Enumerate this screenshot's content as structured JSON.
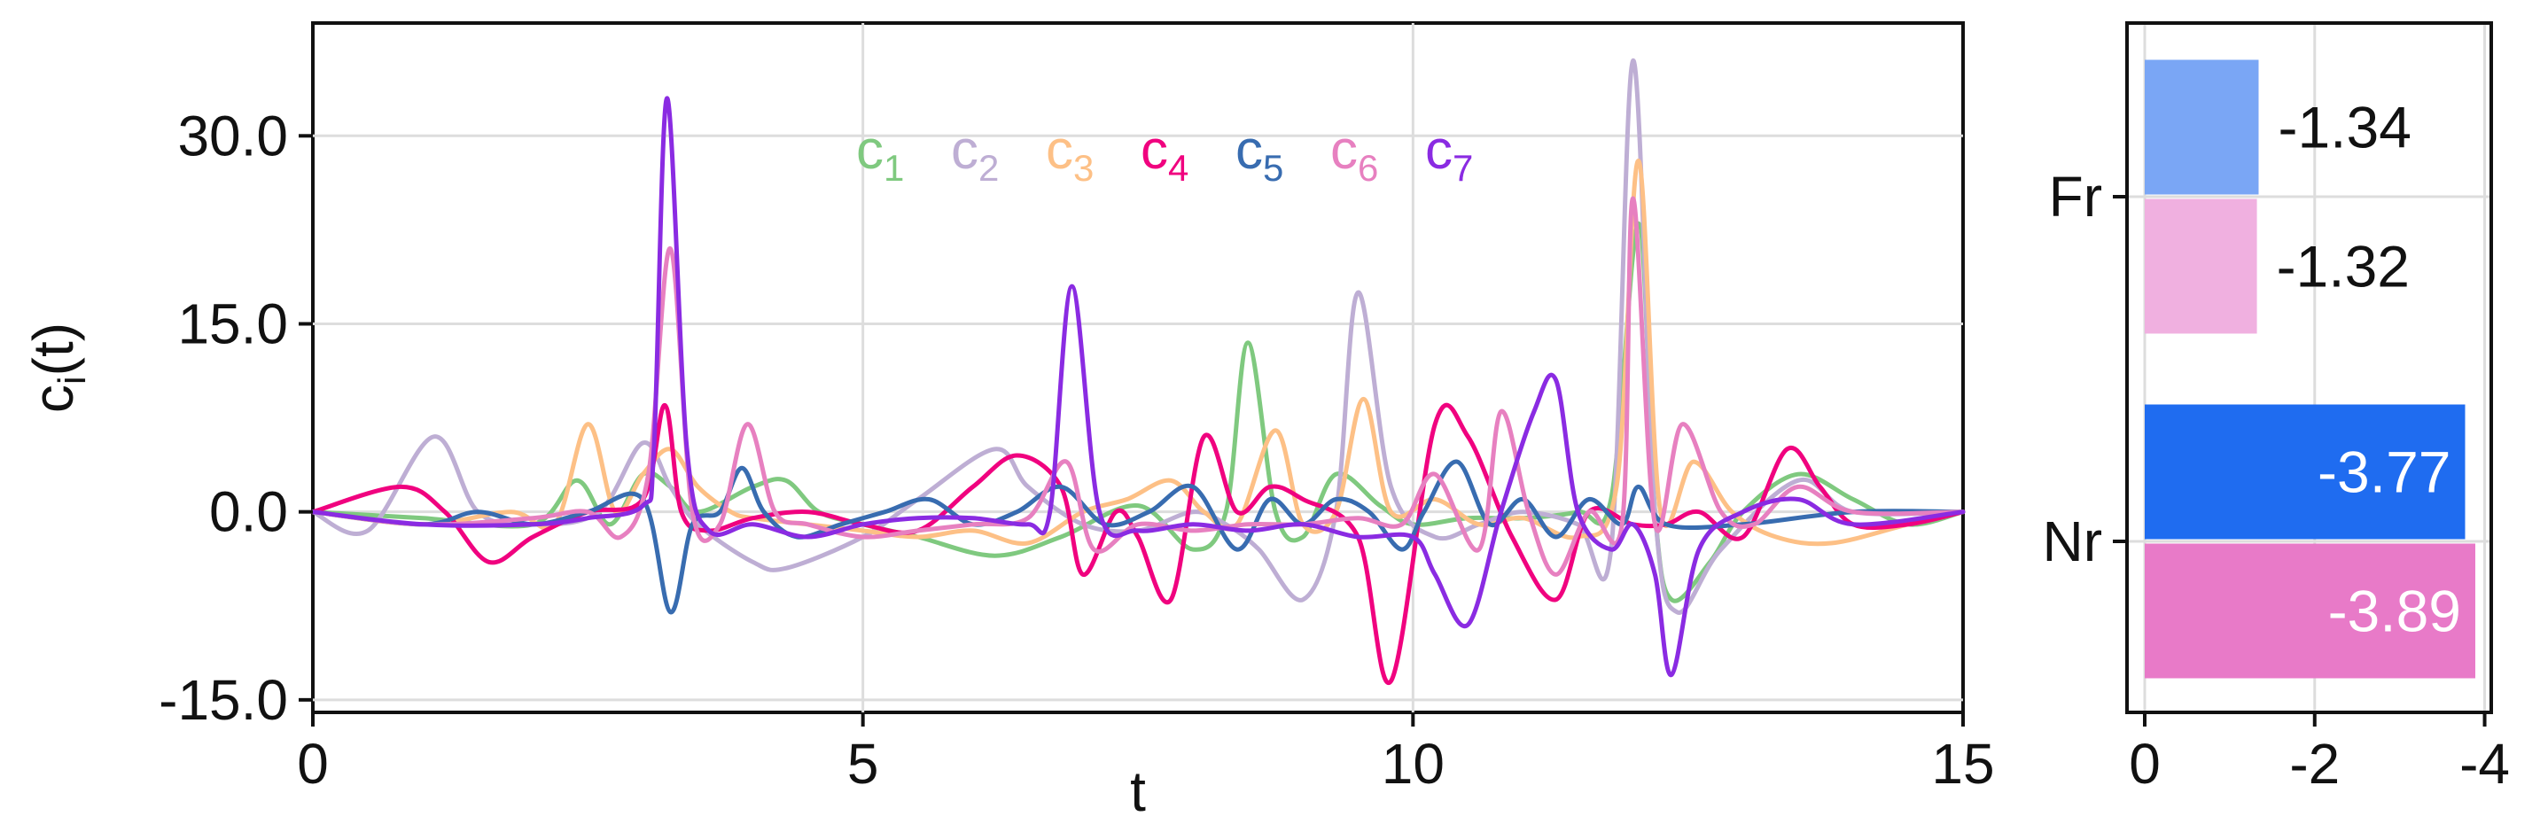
{
  "chart_data": [
    {
      "type": "line",
      "xlabel": "t",
      "ylabel_main": "c",
      "ylabel_sub": "i",
      "ylabel_suffix": "(t)",
      "xlim": [
        0,
        15
      ],
      "ylim": [
        -16,
        39
      ],
      "xticks": [
        0,
        5,
        10,
        15
      ],
      "xtick_labels": [
        "0",
        "5",
        "10",
        "15"
      ],
      "yticks": [
        -15,
        0,
        15,
        30
      ],
      "ytick_labels": [
        "-15.0",
        "0.0",
        "15.0",
        "30.0"
      ],
      "grid": true,
      "legend": {
        "placement": "top-center",
        "orientation": "horizontal"
      },
      "series": [
        {
          "name": "c",
          "sub": "1",
          "color": "#7fc97f",
          "x": [
            0,
            1.0,
            2.0,
            2.4,
            2.7,
            3.0,
            3.25,
            3.5,
            4.0,
            4.3,
            4.6,
            5.0,
            5.5,
            6.2,
            6.8,
            7.5,
            8.0,
            8.3,
            8.5,
            8.75,
            9.0,
            9.3,
            9.7,
            10.0,
            10.5,
            11.0,
            11.5,
            11.8,
            12.05,
            12.2,
            12.35,
            12.7,
            13.0,
            13.5,
            14.0,
            14.5,
            15.0
          ],
          "y": [
            0,
            -0.5,
            -1.0,
            2.5,
            -1.0,
            3.0,
            2.0,
            0.0,
            2.0,
            2.5,
            0.0,
            -1.0,
            -2.0,
            -3.5,
            -2.0,
            0.5,
            -3.0,
            0.0,
            13.5,
            0.0,
            -2.0,
            3.0,
            0.5,
            -1.0,
            -0.5,
            -0.5,
            0.0,
            1.0,
            23.0,
            0.0,
            -7.0,
            -4.0,
            0.0,
            3.0,
            1.0,
            -1.0,
            0
          ]
        },
        {
          "name": "c",
          "sub": "2",
          "color": "#beaed4",
          "x": [
            0,
            0.5,
            1.1,
            1.5,
            2.0,
            2.6,
            3.0,
            3.25,
            3.5,
            4.0,
            4.3,
            5.0,
            5.5,
            6.2,
            6.5,
            7.0,
            7.5,
            8.0,
            8.3,
            8.6,
            9.0,
            9.3,
            9.5,
            9.8,
            10.2,
            10.6,
            11.0,
            11.5,
            11.8,
            12.0,
            12.2,
            12.4,
            12.8,
            13.5,
            14.0,
            15.0
          ],
          "y": [
            0,
            -1.5,
            6.0,
            0.0,
            -1.0,
            0.0,
            5.5,
            2.0,
            -1.0,
            -4.0,
            -4.5,
            -2.0,
            1.0,
            5.0,
            2.0,
            -1.0,
            -1.5,
            0.0,
            -1.0,
            -3.0,
            -7.0,
            0.0,
            17.5,
            2.0,
            -2.0,
            -1.0,
            0.0,
            -1.0,
            -3.0,
            36.0,
            0.0,
            -8.0,
            -3.0,
            2.5,
            0.0,
            0
          ]
        },
        {
          "name": "c",
          "sub": "3",
          "color": "#fdc086",
          "x": [
            0,
            1.0,
            1.8,
            2.2,
            2.5,
            2.75,
            3.0,
            3.25,
            3.5,
            3.8,
            4.0,
            4.5,
            5.0,
            5.5,
            6.0,
            6.5,
            7.0,
            7.4,
            7.8,
            8.1,
            8.4,
            8.75,
            9.0,
            9.3,
            9.55,
            9.8,
            10.2,
            10.6,
            11.0,
            11.5,
            11.85,
            12.05,
            12.25,
            12.55,
            12.9,
            13.3,
            13.8,
            14.5,
            15.0
          ],
          "y": [
            0,
            -1.0,
            0.0,
            -1.0,
            7.0,
            0.0,
            3.0,
            5.0,
            2.0,
            0.0,
            -0.5,
            -1.0,
            -1.5,
            -2.0,
            -1.5,
            -2.5,
            0.0,
            1.0,
            2.5,
            0.0,
            -1.0,
            6.5,
            -1.0,
            0.0,
            9.0,
            0.0,
            1.0,
            -1.0,
            -0.5,
            -2.0,
            2.0,
            28.0,
            0.0,
            4.0,
            0.0,
            -2.0,
            -2.5,
            -1.0,
            0
          ]
        },
        {
          "name": "c",
          "sub": "4",
          "color": "#f0027f",
          "x": [
            0,
            0.8,
            1.2,
            1.6,
            2.0,
            2.5,
            3.0,
            3.2,
            3.35,
            3.6,
            4.0,
            4.5,
            5.0,
            5.5,
            6.0,
            6.4,
            6.8,
            7.0,
            7.3,
            7.5,
            7.8,
            8.1,
            8.4,
            8.7,
            9.0,
            9.5,
            9.8,
            10.2,
            10.5,
            10.9,
            11.3,
            11.6,
            12.0,
            12.3,
            12.6,
            13.0,
            13.4,
            13.7,
            14.0,
            14.5,
            15.0
          ],
          "y": [
            0,
            2.0,
            0.0,
            -4.0,
            -2.0,
            0.0,
            1.0,
            8.5,
            0.0,
            -1.5,
            -0.5,
            0.0,
            -1.0,
            -1.5,
            2.0,
            4.5,
            2.0,
            -5.0,
            0.0,
            -2.0,
            -7.0,
            6.0,
            0.0,
            2.0,
            1.0,
            -2.0,
            -13.5,
            7.0,
            6.0,
            -2.0,
            -7.0,
            0.0,
            -1.0,
            -1.0,
            0.0,
            -2.0,
            5.0,
            2.0,
            -1.0,
            -1.0,
            0
          ]
        },
        {
          "name": "c",
          "sub": "5",
          "color": "#386cb0",
          "x": [
            0,
            1.0,
            1.5,
            2.0,
            2.5,
            3.0,
            3.25,
            3.45,
            3.7,
            3.9,
            4.1,
            4.4,
            4.8,
            5.2,
            5.6,
            6.0,
            6.4,
            6.8,
            7.2,
            7.6,
            8.0,
            8.4,
            8.7,
            9.0,
            9.3,
            9.6,
            9.9,
            10.1,
            10.4,
            10.7,
            11.0,
            11.3,
            11.6,
            11.9,
            12.05,
            12.3,
            13.0,
            14.0,
            15.0
          ],
          "y": [
            0,
            -1.0,
            0.0,
            -1.0,
            0.0,
            1.0,
            -8.0,
            -1.0,
            0.0,
            3.5,
            0.0,
            -2.0,
            -1.0,
            0.0,
            1.0,
            -1.0,
            0.0,
            2.0,
            -1.0,
            0.0,
            2.0,
            -3.0,
            1.0,
            -1.0,
            1.0,
            0.0,
            -3.0,
            0.0,
            4.0,
            -1.0,
            1.0,
            -2.0,
            1.0,
            -1.0,
            2.0,
            -1.0,
            -1.0,
            0.0,
            0
          ]
        },
        {
          "name": "c",
          "sub": "6",
          "color": "#e780c0",
          "x": [
            0,
            1.0,
            2.0,
            2.5,
            2.8,
            3.05,
            3.25,
            3.45,
            3.7,
            3.95,
            4.2,
            4.5,
            5.0,
            5.5,
            6.0,
            6.5,
            6.85,
            7.1,
            7.5,
            8.0,
            8.5,
            9.0,
            9.5,
            9.9,
            10.2,
            10.6,
            10.8,
            11.05,
            11.3,
            11.6,
            11.9,
            12.0,
            12.2,
            12.45,
            12.8,
            13.1,
            13.5,
            14.0,
            15.0
          ],
          "y": [
            0,
            -1.0,
            -0.5,
            0.0,
            -2.0,
            3.0,
            21.0,
            0.0,
            -1.0,
            7.0,
            0.0,
            -1.0,
            -2.0,
            -1.5,
            -1.0,
            -0.5,
            4.0,
            -3.0,
            -1.0,
            -1.5,
            -1.0,
            -1.0,
            -0.5,
            -1.0,
            3.0,
            -3.0,
            8.0,
            0.0,
            -5.0,
            0.0,
            -1.0,
            25.0,
            -1.0,
            7.0,
            0.0,
            -1.0,
            2.0,
            0.0,
            0
          ]
        },
        {
          "name": "c",
          "sub": "7",
          "color": "#8a2be2",
          "x": [
            0,
            1.0,
            2.0,
            2.5,
            3.0,
            3.1,
            3.22,
            3.4,
            3.6,
            4.0,
            4.5,
            5.0,
            5.5,
            6.0,
            6.5,
            6.7,
            6.9,
            7.15,
            7.5,
            8.0,
            8.5,
            9.0,
            9.5,
            10.0,
            10.2,
            10.5,
            10.8,
            11.1,
            11.3,
            11.5,
            11.8,
            12.0,
            12.2,
            12.35,
            12.6,
            13.0,
            13.5,
            14.0,
            15.0
          ],
          "y": [
            0,
            -1.0,
            -1.0,
            -0.5,
            0.5,
            5.0,
            33.0,
            5.0,
            -1.5,
            -1.0,
            -2.0,
            -1.0,
            -0.5,
            -0.5,
            -1.0,
            0.0,
            18.0,
            0.0,
            -1.5,
            -1.0,
            -1.5,
            -1.0,
            -2.0,
            -2.0,
            -5.0,
            -9.0,
            0.0,
            8.0,
            10.5,
            0.0,
            -3.0,
            -1.0,
            -5.0,
            -13.0,
            -3.0,
            0.0,
            1.0,
            -1.0,
            0
          ]
        }
      ]
    },
    {
      "type": "bar",
      "orientation": "horizontal",
      "categories": [
        "Fr",
        "Nr"
      ],
      "xlim": [
        0,
        -4.1
      ],
      "xticks": [
        0,
        -2,
        -4
      ],
      "xtick_labels": [
        "0",
        "-2",
        "-4"
      ],
      "grid": true,
      "bars": [
        {
          "category": "Fr",
          "value": -1.34,
          "label": "-1.34",
          "color": "#7aa6f5",
          "label_color": "#111111"
        },
        {
          "category": "Fr",
          "value": -1.32,
          "label": "-1.32",
          "color": "#f0b0e0",
          "label_color": "#111111"
        },
        {
          "category": "Nr",
          "value": -3.77,
          "label": "-3.77",
          "color": "#1f6cf0",
          "label_color": "#ffffff"
        },
        {
          "category": "Nr",
          "value": -3.89,
          "label": "-3.89",
          "color": "#e87ac8",
          "label_color": "#ffffff"
        }
      ]
    }
  ]
}
